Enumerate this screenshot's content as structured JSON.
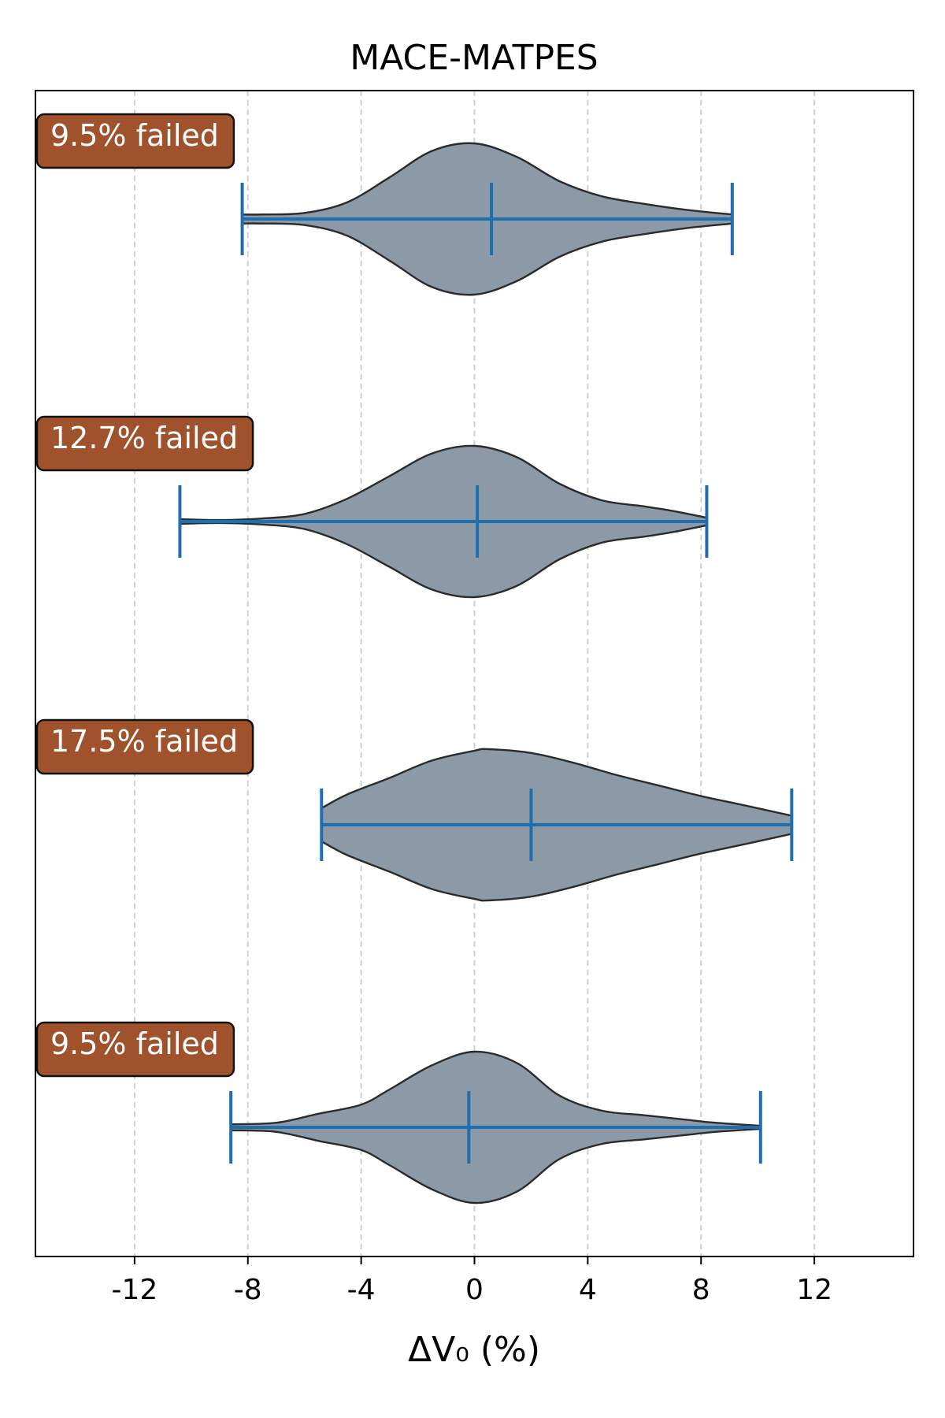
{
  "chart_data": {
    "type": "violin",
    "orientation": "horizontal",
    "title": "MACE-MATPES",
    "xlabel": "ΔV₀ (%)",
    "xlim": [
      -15.5,
      15.5
    ],
    "xticks": [
      -12,
      -8,
      -4,
      0,
      4,
      8,
      12
    ],
    "xtick_labels": [
      "-12",
      "-8",
      "-4",
      "0",
      "4",
      "8",
      "12"
    ],
    "grid": "x-dashed",
    "colors": {
      "violin_fill": "#8c9aa8",
      "violin_edge": "#2b2b2b",
      "whisker": "#1f6faf",
      "badge_fill": "#a0522d",
      "badge_text": "#ffffff",
      "grid": "#cccccc"
    },
    "series": [
      {
        "failed_label": "9.5% failed",
        "min": -8.2,
        "max": 9.1,
        "mean": 0.6,
        "density": [
          [
            -8.2,
            0.06
          ],
          [
            -7.5,
            0.06
          ],
          [
            -6,
            0.08
          ],
          [
            -4.5,
            0.22
          ],
          [
            -3,
            0.55
          ],
          [
            -1.5,
            0.9
          ],
          [
            0,
            1.0
          ],
          [
            1.5,
            0.82
          ],
          [
            3,
            0.5
          ],
          [
            4.5,
            0.3
          ],
          [
            6,
            0.2
          ],
          [
            7.5,
            0.12
          ],
          [
            9.1,
            0.06
          ]
        ]
      },
      {
        "failed_label": "12.7% failed",
        "min": -10.4,
        "max": 8.2,
        "mean": 0.1,
        "density": [
          [
            -10.4,
            0.03
          ],
          [
            -9,
            0.02
          ],
          [
            -7.5,
            0.04
          ],
          [
            -6,
            0.1
          ],
          [
            -4.5,
            0.3
          ],
          [
            -3,
            0.6
          ],
          [
            -1.5,
            0.9
          ],
          [
            0,
            1.0
          ],
          [
            1.5,
            0.85
          ],
          [
            3,
            0.5
          ],
          [
            4.5,
            0.28
          ],
          [
            6,
            0.2
          ],
          [
            7,
            0.14
          ],
          [
            8.2,
            0.05
          ]
        ]
      },
      {
        "failed_label": "17.5% failed",
        "min": -5.4,
        "max": 11.2,
        "mean": 2.0,
        "density": [
          [
            -5.4,
            0.22
          ],
          [
            -4.5,
            0.4
          ],
          [
            -3,
            0.62
          ],
          [
            -1.5,
            0.85
          ],
          [
            0,
            0.98
          ],
          [
            0.5,
            1.0
          ],
          [
            2,
            0.95
          ],
          [
            3.5,
            0.82
          ],
          [
            5,
            0.66
          ],
          [
            6.5,
            0.52
          ],
          [
            8,
            0.38
          ],
          [
            9.5,
            0.26
          ],
          [
            11.2,
            0.12
          ]
        ]
      },
      {
        "failed_label": "9.5% failed",
        "min": -8.6,
        "max": 10.1,
        "mean": -0.2,
        "density": [
          [
            -8.6,
            0.04
          ],
          [
            -7,
            0.06
          ],
          [
            -5.5,
            0.18
          ],
          [
            -4,
            0.3
          ],
          [
            -3,
            0.5
          ],
          [
            -1.5,
            0.82
          ],
          [
            0,
            1.0
          ],
          [
            1.5,
            0.85
          ],
          [
            3,
            0.42
          ],
          [
            4.5,
            0.22
          ],
          [
            6,
            0.16
          ],
          [
            7.5,
            0.1
          ],
          [
            8.5,
            0.06
          ],
          [
            10.1,
            0.02
          ]
        ]
      }
    ]
  }
}
